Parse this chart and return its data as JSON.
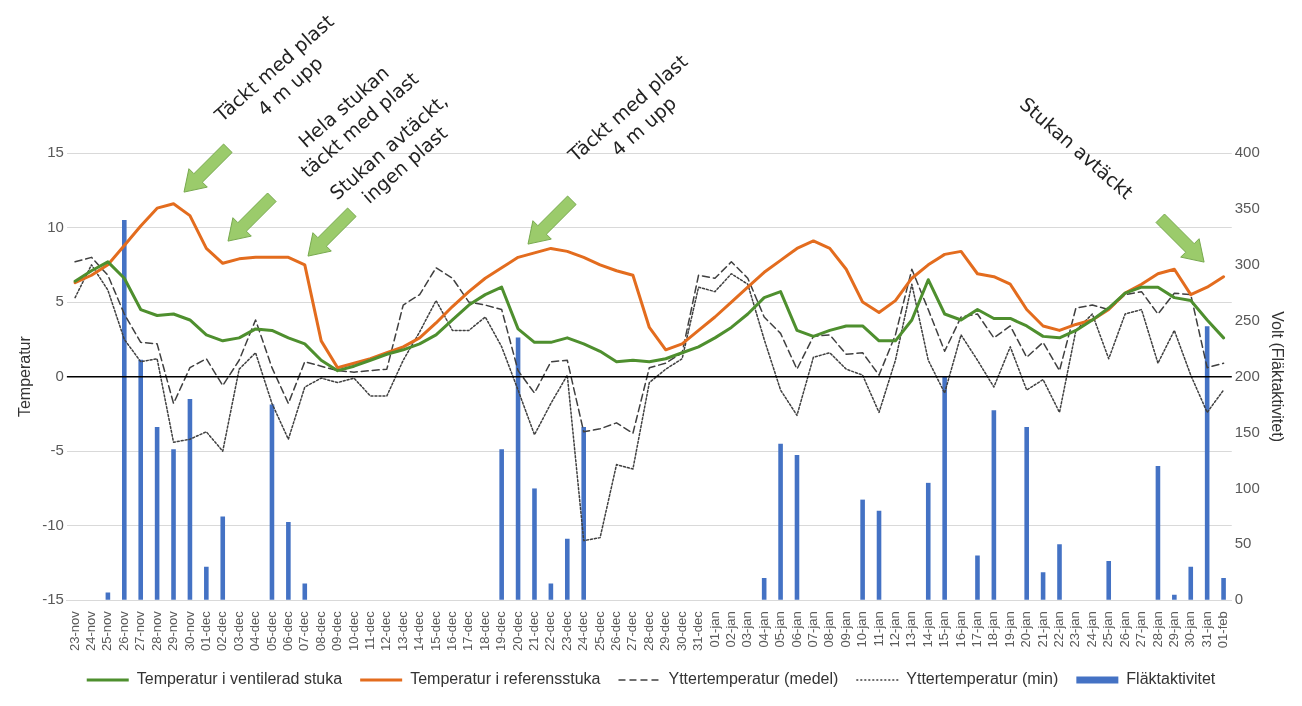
{
  "chart_data": {
    "type": "line",
    "categories": [
      "23-nov",
      "24-nov",
      "25-nov",
      "26-nov",
      "27-nov",
      "28-nov",
      "29-nov",
      "30-nov",
      "01-dec",
      "02-dec",
      "03-dec",
      "04-dec",
      "05-dec",
      "06-dec",
      "07-dec",
      "08-dec",
      "09-dec",
      "10-dec",
      "11-dec",
      "12-dec",
      "13-dec",
      "14-dec",
      "15-dec",
      "16-dec",
      "17-dec",
      "18-dec",
      "19-dec",
      "20-dec",
      "21-dec",
      "22-dec",
      "23-dec",
      "24-dec",
      "25-dec",
      "26-dec",
      "27-dec",
      "28-dec",
      "29-dec",
      "30-dec",
      "31-dec",
      "01-jan",
      "02-jan",
      "03-jan",
      "04-jan",
      "05-jan",
      "06-jan",
      "07-jan",
      "08-jan",
      "09-jan",
      "10-jan",
      "11-jan",
      "12-jan",
      "13-jan",
      "14-jan",
      "15-jan",
      "16-jan",
      "17-jan",
      "18-jan",
      "19-jan",
      "20-jan",
      "21-jan",
      "22-jan",
      "23-jan",
      "24-jan",
      "25-jan",
      "26-jan",
      "27-jan",
      "28-jan",
      "29-jan",
      "30-jan",
      "31-jan",
      "01-feb"
    ],
    "series": [
      {
        "name": "Fläktaktivitet",
        "type": "bar",
        "axis": "y2",
        "color": "#4472c4",
        "values": [
          null,
          null,
          7,
          340,
          215,
          155,
          135,
          180,
          30,
          75,
          null,
          null,
          175,
          70,
          15,
          null,
          null,
          null,
          null,
          null,
          null,
          null,
          null,
          null,
          null,
          null,
          135,
          235,
          100,
          15,
          55,
          155,
          null,
          null,
          null,
          null,
          null,
          null,
          null,
          null,
          null,
          null,
          20,
          140,
          130,
          null,
          null,
          null,
          90,
          80,
          null,
          null,
          105,
          200,
          null,
          40,
          170,
          null,
          155,
          25,
          50,
          null,
          null,
          35,
          null,
          null,
          120,
          5,
          30,
          245,
          20
        ]
      },
      {
        "name": "Temperatur i ventilerad stuka",
        "color": "#4e8f2e",
        "line_style": "solid",
        "values": [
          6.4,
          7.1,
          7.7,
          6.6,
          4.5,
          4.1,
          4.2,
          3.8,
          2.8,
          2.4,
          2.6,
          3.2,
          3.1,
          2.6,
          2.2,
          1.1,
          0.4,
          0.7,
          1.1,
          1.5,
          1.8,
          2.2,
          2.8,
          3.8,
          4.8,
          5.5,
          6.0,
          3.2,
          2.3,
          2.3,
          2.6,
          2.2,
          1.7,
          1.0,
          1.1,
          1.0,
          1.2,
          1.6,
          2.0,
          2.6,
          3.3,
          4.2,
          5.3,
          5.7,
          3.1,
          2.7,
          3.1,
          3.4,
          3.4,
          2.4,
          2.4,
          3.8,
          6.5,
          4.2,
          3.8,
          4.5,
          3.9,
          3.9,
          3.4,
          2.7,
          2.6,
          3.1,
          3.8,
          4.6,
          5.6,
          6.0,
          6.0,
          5.3,
          5.1,
          3.8,
          2.6
        ]
      },
      {
        "name": "Yttertemperatur (medel)",
        "color": "#404040",
        "line_style": "dashed",
        "values": [
          7.7,
          8.0,
          6.8,
          4.2,
          2.3,
          2.2,
          -1.8,
          0.6,
          1.2,
          -0.6,
          1.1,
          3.8,
          0.6,
          -1.8,
          1.0,
          0.7,
          0.4,
          0.3,
          0.4,
          0.5,
          4.8,
          5.5,
          7.3,
          6.6,
          5.0,
          4.8,
          4.5,
          0.4,
          -1.1,
          1.0,
          1.1,
          -3.7,
          -3.5,
          -3.1,
          -3.8,
          0.6,
          0.9,
          1.6,
          6.8,
          6.6,
          7.7,
          6.6,
          4.0,
          2.9,
          0.5,
          2.7,
          2.8,
          1.5,
          1.6,
          0.1,
          2.8,
          7.2,
          4.5,
          1.7,
          4.0,
          4.2,
          2.6,
          3.4,
          1.3,
          2.3,
          0.4,
          4.6,
          4.8,
          4.5,
          5.5,
          5.7,
          4.2,
          5.6,
          5.5,
          0.6,
          0.9
        ]
      },
      {
        "name": "Temperatur i referensstuka",
        "color": "#e36c1e",
        "line_style": "solid",
        "values": [
          6.3,
          6.8,
          7.5,
          8.8,
          10.1,
          11.3,
          11.6,
          10.8,
          8.6,
          7.6,
          7.9,
          8.0,
          8.0,
          8.0,
          7.5,
          2.4,
          0.6,
          0.9,
          1.2,
          1.6,
          2.0,
          2.6,
          3.6,
          4.7,
          5.7,
          6.6,
          7.3,
          8.0,
          8.3,
          8.6,
          8.4,
          8.0,
          7.5,
          7.1,
          6.8,
          3.3,
          1.8,
          2.2,
          3.1,
          4.0,
          5.0,
          6.0,
          7.0,
          7.8,
          8.6,
          9.1,
          8.6,
          7.2,
          5.0,
          4.3,
          5.1,
          6.6,
          7.5,
          8.2,
          8.4,
          6.9,
          6.7,
          6.2,
          4.5,
          3.4,
          3.1,
          3.5,
          3.8,
          4.5,
          5.6,
          6.2,
          6.9,
          7.2,
          5.5,
          6.0,
          6.7
        ]
      },
      {
        "name": "Yttertemperatur (min)",
        "color": "#404040",
        "line_style": "dotted",
        "values": [
          5.3,
          7.5,
          5.8,
          2.5,
          1.0,
          1.2,
          -4.4,
          -4.2,
          -3.7,
          -5.0,
          0.5,
          1.6,
          -1.8,
          -4.2,
          -0.7,
          -0.1,
          -0.4,
          -0.1,
          -1.3,
          -1.3,
          1.1,
          3.0,
          5.1,
          3.1,
          3.1,
          4.0,
          2.0,
          -0.9,
          -3.9,
          -1.8,
          0.1,
          -11.0,
          -10.8,
          -5.9,
          -6.2,
          -0.4,
          0.5,
          1.2,
          6.0,
          5.7,
          6.9,
          6.2,
          2.5,
          -0.9,
          -2.6,
          1.3,
          1.6,
          0.5,
          0.1,
          -2.4,
          1.1,
          6.2,
          1.1,
          -1.1,
          2.8,
          1.1,
          -0.7,
          2.0,
          -0.9,
          -0.2,
          -2.4,
          3.1,
          4.2,
          1.2,
          4.2,
          4.5,
          0.9,
          3.1,
          0.1,
          -2.4,
          -0.9
        ]
      }
    ],
    "ylabel": "Temperatur",
    "y2label": "Volt (Fläktaktivitet)",
    "ylim": [
      -15,
      15
    ],
    "yticks": [
      -15,
      -10,
      -5,
      0,
      5,
      10,
      15
    ],
    "y2lim": [
      0,
      400
    ],
    "y2ticks": [
      0,
      50,
      100,
      150,
      200,
      250,
      300,
      350,
      400
    ],
    "grid": "y",
    "legend": "bottom",
    "marker": "none",
    "ref_lines": [
      {
        "axis": "y",
        "value": 0,
        "color": "#000000"
      }
    ],
    "annotations": [
      "Täckt med plast\n4 m upp",
      "Hela stukan\ntäckt med plast",
      "Stukan avtäckt,\ningen plast",
      "Täckt med plast\n4 m upp",
      "Stukan avtäckt"
    ]
  }
}
